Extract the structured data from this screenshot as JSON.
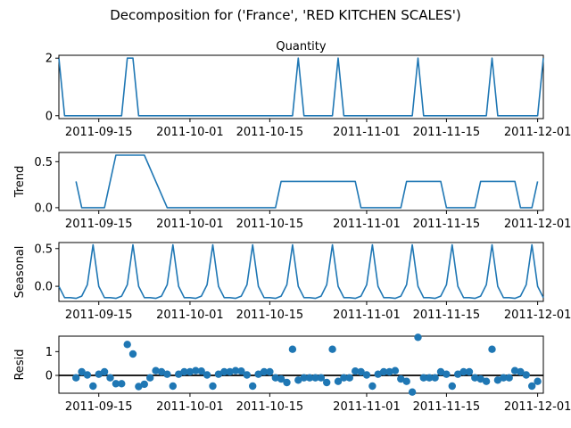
{
  "figure": {
    "suptitle": "Decomposition for ('France', 'RED KITCHEN SCALES')"
  },
  "colors": {
    "series": "#1f77b4",
    "axis": "#000000",
    "zero_line": "#000000"
  },
  "chart_data": [
    {
      "type": "line",
      "title": "Quantity",
      "ylabel": "",
      "x_start": "2011-09-08",
      "x_end": "2011-12-02",
      "ylim": [
        -0.1,
        2.1
      ],
      "yticks": [
        {
          "value": 0,
          "label": "0"
        },
        {
          "value": 2,
          "label": "2"
        }
      ],
      "xticks": [
        {
          "date": "2011-09-15",
          "label": "2011-09-15"
        },
        {
          "date": "2011-10-01",
          "label": "2011-10-01"
        },
        {
          "date": "2011-10-15",
          "label": "2011-10-15"
        },
        {
          "date": "2011-11-01",
          "label": "2011-11-01"
        },
        {
          "date": "2011-11-15",
          "label": "2011-11-15"
        },
        {
          "date": "2011-12-01",
          "label": "2011-12-01"
        }
      ],
      "points": [
        [
          "2011-09-08",
          2
        ],
        [
          "2011-09-09",
          0
        ],
        [
          "2011-09-19",
          0
        ],
        [
          "2011-09-20",
          2
        ],
        [
          "2011-09-21",
          2
        ],
        [
          "2011-09-22",
          0
        ],
        [
          "2011-10-19",
          0
        ],
        [
          "2011-10-20",
          2
        ],
        [
          "2011-10-21",
          0
        ],
        [
          "2011-10-26",
          0
        ],
        [
          "2011-10-27",
          2
        ],
        [
          "2011-10-28",
          0
        ],
        [
          "2011-11-09",
          0
        ],
        [
          "2011-11-10",
          2
        ],
        [
          "2011-11-11",
          0
        ],
        [
          "2011-11-22",
          0
        ],
        [
          "2011-11-23",
          2
        ],
        [
          "2011-11-24",
          0
        ],
        [
          "2011-12-01",
          0
        ],
        [
          "2011-12-02",
          2
        ]
      ]
    },
    {
      "type": "line",
      "title": "",
      "ylabel": "Trend",
      "x_start": "2011-09-08",
      "x_end": "2011-12-02",
      "ylim": [
        -0.03,
        0.6
      ],
      "yticks": [
        {
          "value": 0.0,
          "label": "0.0"
        },
        {
          "value": 0.5,
          "label": "0.5"
        }
      ],
      "xticks": [
        {
          "date": "2011-09-15",
          "label": "2011-09-15"
        },
        {
          "date": "2011-10-01",
          "label": "2011-10-01"
        },
        {
          "date": "2011-10-15",
          "label": "2011-10-15"
        },
        {
          "date": "2011-11-01",
          "label": "2011-11-01"
        },
        {
          "date": "2011-11-15",
          "label": "2011-11-15"
        },
        {
          "date": "2011-12-01",
          "label": "2011-12-01"
        }
      ],
      "points": [
        [
          "2011-09-11",
          0.286
        ],
        [
          "2011-09-12",
          0
        ],
        [
          "2011-09-16",
          0
        ],
        [
          "2011-09-18",
          0.571
        ],
        [
          "2011-09-23",
          0.571
        ],
        [
          "2011-09-27",
          0
        ],
        [
          "2011-10-16",
          0
        ],
        [
          "2011-10-17",
          0.286
        ],
        [
          "2011-10-30",
          0.286
        ],
        [
          "2011-10-31",
          0
        ],
        [
          "2011-11-07",
          0
        ],
        [
          "2011-11-08",
          0.286
        ],
        [
          "2011-11-14",
          0.286
        ],
        [
          "2011-11-15",
          0
        ],
        [
          "2011-11-20",
          0
        ],
        [
          "2011-11-21",
          0.286
        ],
        [
          "2011-11-27",
          0.286
        ],
        [
          "2011-11-28",
          0
        ],
        [
          "2011-11-30",
          0
        ],
        [
          "2011-12-01",
          0.286
        ]
      ]
    },
    {
      "type": "line",
      "title": "",
      "ylabel": "Seasonal",
      "x_start": "2011-09-08",
      "x_end": "2011-12-02",
      "ylim": [
        -0.2,
        0.58
      ],
      "yticks": [
        {
          "value": 0.0,
          "label": "0.0"
        },
        {
          "value": 0.5,
          "label": "0.5"
        }
      ],
      "xticks": [
        {
          "date": "2011-09-15",
          "label": "2011-09-15"
        },
        {
          "date": "2011-10-01",
          "label": "2011-10-01"
        },
        {
          "date": "2011-10-15",
          "label": "2011-10-15"
        },
        {
          "date": "2011-11-01",
          "label": "2011-11-01"
        },
        {
          "date": "2011-11-15",
          "label": "2011-11-15"
        },
        {
          "date": "2011-12-01",
          "label": "2011-12-01"
        }
      ],
      "seasonal_start": "2011-09-08",
      "seasonal_pattern": [
        0.0,
        -0.15,
        -0.15,
        -0.16,
        -0.13,
        0.02,
        0.55
      ],
      "seasonal_repeats": 13
    },
    {
      "type": "scatter",
      "title": "",
      "ylabel": "Resid",
      "x_start": "2011-09-08",
      "x_end": "2011-12-02",
      "ylim": [
        -0.75,
        1.65
      ],
      "zero_line": 0,
      "yticks": [
        {
          "value": 0,
          "label": "0"
        },
        {
          "value": 1,
          "label": "1"
        }
      ],
      "xticks": [
        {
          "date": "2011-09-15",
          "label": "2011-09-15"
        },
        {
          "date": "2011-10-01",
          "label": "2011-10-01"
        },
        {
          "date": "2011-10-15",
          "label": "2011-10-15"
        },
        {
          "date": "2011-11-01",
          "label": "2011-11-01"
        },
        {
          "date": "2011-11-15",
          "label": "2011-11-15"
        },
        {
          "date": "2011-12-01",
          "label": "2011-12-01"
        }
      ],
      "points": [
        [
          "2011-09-11",
          -0.1
        ],
        [
          "2011-09-12",
          0.15
        ],
        [
          "2011-09-13",
          0.02
        ],
        [
          "2011-09-14",
          -0.45
        ],
        [
          "2011-09-15",
          0.05
        ],
        [
          "2011-09-16",
          0.15
        ],
        [
          "2011-09-17",
          -0.1
        ],
        [
          "2011-09-18",
          -0.35
        ],
        [
          "2011-09-19",
          -0.35
        ],
        [
          "2011-09-20",
          1.3
        ],
        [
          "2011-09-21",
          0.9
        ],
        [
          "2011-09-22",
          -0.47
        ],
        [
          "2011-09-23",
          -0.37
        ],
        [
          "2011-09-24",
          -0.1
        ],
        [
          "2011-09-25",
          0.2
        ],
        [
          "2011-09-26",
          0.15
        ],
        [
          "2011-09-27",
          0.05
        ],
        [
          "2011-09-28",
          -0.45
        ],
        [
          "2011-09-29",
          0.05
        ],
        [
          "2011-09-30",
          0.15
        ],
        [
          "2011-10-01",
          0.15
        ],
        [
          "2011-10-02",
          0.2
        ],
        [
          "2011-10-03",
          0.18
        ],
        [
          "2011-10-04",
          0.02
        ],
        [
          "2011-10-05",
          -0.45
        ],
        [
          "2011-10-06",
          0.05
        ],
        [
          "2011-10-07",
          0.15
        ],
        [
          "2011-10-08",
          0.15
        ],
        [
          "2011-10-09",
          0.2
        ],
        [
          "2011-10-10",
          0.18
        ],
        [
          "2011-10-11",
          0.02
        ],
        [
          "2011-10-12",
          -0.45
        ],
        [
          "2011-10-13",
          0.05
        ],
        [
          "2011-10-14",
          0.15
        ],
        [
          "2011-10-15",
          0.15
        ],
        [
          "2011-10-16",
          -0.1
        ],
        [
          "2011-10-17",
          -0.15
        ],
        [
          "2011-10-18",
          -0.3
        ],
        [
          "2011-10-19",
          1.1
        ],
        [
          "2011-10-20",
          -0.2
        ],
        [
          "2011-10-21",
          -0.1
        ],
        [
          "2011-10-22",
          -0.1
        ],
        [
          "2011-10-23",
          -0.1
        ],
        [
          "2011-10-24",
          -0.1
        ],
        [
          "2011-10-25",
          -0.3
        ],
        [
          "2011-10-26",
          1.1
        ],
        [
          "2011-10-27",
          -0.25
        ],
        [
          "2011-10-28",
          -0.1
        ],
        [
          "2011-10-29",
          -0.1
        ],
        [
          "2011-10-30",
          0.18
        ],
        [
          "2011-10-31",
          0.15
        ],
        [
          "2011-11-01",
          0.02
        ],
        [
          "2011-11-02",
          -0.45
        ],
        [
          "2011-11-03",
          0.05
        ],
        [
          "2011-11-04",
          0.15
        ],
        [
          "2011-11-05",
          0.15
        ],
        [
          "2011-11-06",
          0.2
        ],
        [
          "2011-11-07",
          -0.15
        ],
        [
          "2011-11-08",
          -0.25
        ],
        [
          "2011-11-09",
          -0.7
        ],
        [
          "2011-11-10",
          1.6
        ],
        [
          "2011-11-11",
          -0.1
        ],
        [
          "2011-11-12",
          -0.1
        ],
        [
          "2011-11-13",
          -0.1
        ],
        [
          "2011-11-14",
          0.15
        ],
        [
          "2011-11-15",
          0.05
        ],
        [
          "2011-11-16",
          -0.45
        ],
        [
          "2011-11-17",
          0.05
        ],
        [
          "2011-11-18",
          0.15
        ],
        [
          "2011-11-19",
          0.15
        ],
        [
          "2011-11-20",
          -0.1
        ],
        [
          "2011-11-21",
          -0.15
        ],
        [
          "2011-11-22",
          -0.25
        ],
        [
          "2011-11-23",
          1.1
        ],
        [
          "2011-11-24",
          -0.2
        ],
        [
          "2011-11-25",
          -0.1
        ],
        [
          "2011-11-26",
          -0.1
        ],
        [
          "2011-11-27",
          0.2
        ],
        [
          "2011-11-28",
          0.15
        ],
        [
          "2011-11-29",
          0.02
        ],
        [
          "2011-11-30",
          -0.45
        ],
        [
          "2011-12-01",
          -0.25
        ]
      ]
    }
  ]
}
